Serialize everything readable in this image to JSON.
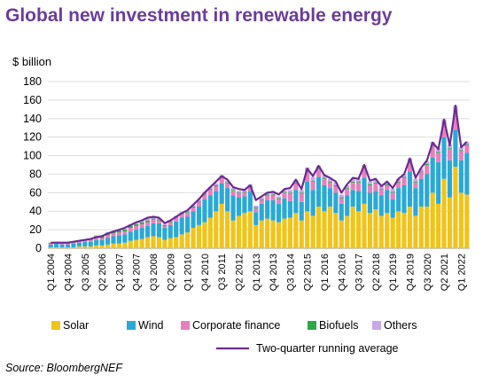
{
  "title": "Global new investment in renewable energy",
  "unit_label": "$ billion",
  "source": "Source: BloombergNEF",
  "colors": {
    "solar": "#f0c419",
    "wind": "#29a9d6",
    "corporate_finance": "#e87fbd",
    "biofuels": "#2aa84a",
    "others": "#c9a6e6",
    "average": "#6b2c91",
    "gridline": "#dddddd"
  },
  "chart_data": {
    "type": "bar",
    "stacked": true,
    "title": "Global new investment in renewable energy",
    "ylabel": "$ billion",
    "ylim": [
      0,
      180
    ],
    "yticks": [
      0,
      20,
      40,
      60,
      80,
      100,
      120,
      140,
      160,
      180
    ],
    "grid": true,
    "legend_position": "bottom",
    "x_tick_labels": [
      "Q1 2004",
      "Q4 2004",
      "Q3 2005",
      "Q2 2006",
      "Q1 2007",
      "Q4 2007",
      "Q3 2008",
      "Q2 2009",
      "Q1 2010",
      "Q4 2010",
      "Q3 2011",
      "Q2 2012",
      "Q1 2013",
      "Q4 2013",
      "Q3 2014",
      "Q2 2015",
      "Q1 2016",
      "Q4 2016",
      "Q3 2017",
      "Q2 2018",
      "Q1 2019",
      "Q4 2019",
      "Q3 2020",
      "Q2 2021",
      "Q1 2022"
    ],
    "categories": [
      "Q1 2004",
      "Q2 2004",
      "Q3 2004",
      "Q4 2004",
      "Q1 2005",
      "Q2 2005",
      "Q3 2005",
      "Q4 2005",
      "Q1 2006",
      "Q2 2006",
      "Q3 2006",
      "Q4 2006",
      "Q1 2007",
      "Q2 2007",
      "Q3 2007",
      "Q4 2007",
      "Q1 2008",
      "Q2 2008",
      "Q3 2008",
      "Q4 2008",
      "Q1 2009",
      "Q2 2009",
      "Q3 2009",
      "Q4 2009",
      "Q1 2010",
      "Q2 2010",
      "Q3 2010",
      "Q4 2010",
      "Q1 2011",
      "Q2 2011",
      "Q3 2011",
      "Q4 2011",
      "Q1 2012",
      "Q2 2012",
      "Q3 2012",
      "Q4 2012",
      "Q1 2013",
      "Q2 2013",
      "Q3 2013",
      "Q4 2013",
      "Q1 2014",
      "Q2 2014",
      "Q3 2014",
      "Q4 2014",
      "Q1 2015",
      "Q2 2015",
      "Q3 2015",
      "Q4 2015",
      "Q1 2016",
      "Q2 2016",
      "Q3 2016",
      "Q4 2016",
      "Q1 2017",
      "Q2 2017",
      "Q3 2017",
      "Q4 2017",
      "Q1 2018",
      "Q2 2018",
      "Q3 2018",
      "Q4 2018",
      "Q1 2019",
      "Q2 2019",
      "Q3 2019",
      "Q4 2019",
      "Q1 2020",
      "Q2 2020",
      "Q3 2020",
      "Q4 2020",
      "Q1 2021",
      "Q2 2021",
      "Q3 2021",
      "Q4 2021",
      "Q1 2022",
      "Q2 2022"
    ],
    "series": [
      {
        "name": "Solar",
        "values": [
          1,
          1,
          1,
          1,
          1,
          2,
          2,
          2,
          3,
          3,
          4,
          5,
          5,
          6,
          8,
          9,
          10,
          12,
          13,
          12,
          9,
          11,
          12,
          15,
          17,
          22,
          25,
          28,
          33,
          40,
          48,
          40,
          30,
          35,
          38,
          40,
          25,
          30,
          32,
          30,
          28,
          32,
          33,
          38,
          30,
          40,
          35,
          45,
          40,
          45,
          38,
          30,
          35,
          45,
          40,
          48,
          38,
          42,
          35,
          38,
          33,
          40,
          38,
          45,
          35,
          45,
          45,
          60,
          48,
          75,
          55,
          88,
          60,
          58
        ]
      },
      {
        "name": "Wind",
        "values": [
          3,
          4,
          3,
          3,
          4,
          4,
          5,
          5,
          6,
          6,
          7,
          8,
          9,
          9,
          10,
          11,
          12,
          12,
          14,
          15,
          13,
          14,
          17,
          18,
          17,
          18,
          20,
          25,
          24,
          22,
          22,
          25,
          27,
          20,
          18,
          22,
          14,
          18,
          20,
          22,
          20,
          22,
          18,
          25,
          20,
          32,
          28,
          32,
          28,
          20,
          22,
          18,
          22,
          18,
          22,
          28,
          22,
          20,
          22,
          25,
          20,
          25,
          30,
          38,
          30,
          30,
          35,
          38,
          45,
          45,
          40,
          40,
          35,
          45
        ]
      },
      {
        "name": "Corporate finance",
        "values": [
          1,
          1,
          1,
          1,
          1,
          1,
          1,
          2,
          2,
          2,
          3,
          3,
          3,
          3,
          4,
          4,
          4,
          4,
          4,
          3,
          2,
          3,
          4,
          4,
          4,
          4,
          5,
          5,
          6,
          5,
          6,
          5,
          5,
          4,
          4,
          4,
          4,
          4,
          5,
          5,
          5,
          6,
          8,
          7,
          9,
          10,
          9,
          8,
          7,
          6,
          7,
          6,
          7,
          8,
          9,
          10,
          8,
          8,
          6,
          5,
          7,
          6,
          8,
          9,
          6,
          7,
          10,
          12,
          10,
          14,
          12,
          15,
          10,
          8
        ]
      },
      {
        "name": "Biofuels",
        "values": [
          1,
          1,
          1,
          1,
          1,
          1,
          1,
          1,
          2,
          2,
          2,
          2,
          2,
          2,
          2,
          2,
          2,
          2,
          1,
          1,
          1,
          1,
          1,
          1,
          1,
          1,
          1,
          1,
          1,
          1,
          1,
          1,
          1,
          1,
          1,
          1,
          1,
          1,
          1,
          1,
          1,
          1,
          1,
          1,
          1,
          1,
          1,
          1,
          1,
          1,
          1,
          1,
          1,
          1,
          1,
          1,
          1,
          1,
          1,
          1,
          1,
          1,
          1,
          1,
          1,
          1,
          1,
          1,
          1,
          1,
          1,
          1,
          1,
          1
        ]
      },
      {
        "name": "Others",
        "values": [
          0,
          0,
          0,
          0,
          0,
          0,
          0,
          0,
          1,
          1,
          1,
          1,
          1,
          1,
          2,
          2,
          2,
          2,
          2,
          1,
          1,
          1,
          1,
          1,
          2,
          2,
          2,
          2,
          2,
          2,
          2,
          2,
          2,
          2,
          2,
          2,
          2,
          2,
          2,
          2,
          2,
          2,
          3,
          3,
          3,
          4,
          4,
          3,
          3,
          3,
          3,
          3,
          3,
          3,
          3,
          3,
          3,
          3,
          3,
          3,
          3,
          3,
          3,
          4,
          3,
          3,
          3,
          4,
          4,
          4,
          4,
          10,
          3,
          3
        ]
      }
    ],
    "line_series": {
      "name": "Two-quarter running average",
      "values": [
        6,
        6,
        6,
        6,
        7,
        8,
        9,
        10,
        12,
        13,
        16,
        18,
        20,
        22,
        25,
        28,
        30,
        33,
        34,
        33,
        27,
        30,
        34,
        38,
        41,
        47,
        53,
        60,
        66,
        72,
        78,
        74,
        66,
        64,
        63,
        68,
        52,
        56,
        60,
        61,
        58,
        64,
        65,
        74,
        64,
        86,
        78,
        89,
        79,
        76,
        72,
        60,
        69,
        76,
        75,
        90,
        73,
        75,
        67,
        72,
        65,
        75,
        80,
        97,
        76,
        87,
        95,
        114,
        107,
        139,
        111,
        154,
        109,
        115
      ]
    },
    "legend": [
      "Solar",
      "Wind",
      "Corporate finance",
      "Biofuels",
      "Others",
      "Two-quarter running average"
    ]
  }
}
